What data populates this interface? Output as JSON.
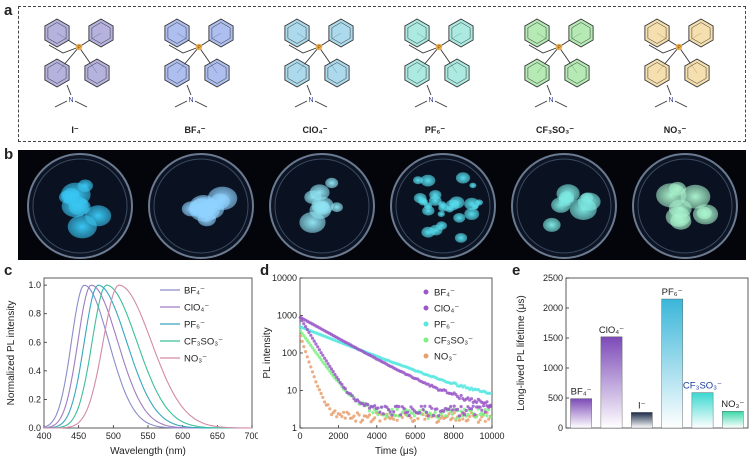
{
  "panels": {
    "a": "a",
    "b": "b",
    "c": "c",
    "d": "d",
    "e": "e"
  },
  "colors": {
    "I": "#a8a4d8",
    "BF4": "#9fb3ec",
    "ClO4": "#9ed2e8",
    "PF6": "#9ee6dc",
    "CF3SO3": "#a8e6a8",
    "NO3": "#f5d9a0",
    "phosphorus": "#f0b050",
    "bond": "#333333"
  },
  "molecules": [
    {
      "anion": "I⁻",
      "color": "#a8a4d8"
    },
    {
      "anion": "BF₄⁻",
      "color": "#9fb3ec"
    },
    {
      "anion": "ClO₄⁻",
      "color": "#9ed2e8"
    },
    {
      "anion": "PF₆⁻",
      "color": "#9ee6dc"
    },
    {
      "anion": "CF₃SO₃⁻",
      "color": "#a8e6a8"
    },
    {
      "anion": "NO₃⁻",
      "color": "#f5d9a0"
    }
  ],
  "molecule_labels": {
    "P": "P",
    "N": "N"
  },
  "photos": [
    {
      "name": "I",
      "glow": "#38c6f2"
    },
    {
      "name": "BF4",
      "glow": "#8fd2ff"
    },
    {
      "name": "ClO4",
      "glow": "#8fe3f2"
    },
    {
      "name": "PF6",
      "glow": "#56ddee"
    },
    {
      "name": "CF3SO3",
      "glow": "#7de9e2"
    },
    {
      "name": "NO3",
      "glow": "#a8f2cc"
    }
  ],
  "chart_data": [
    {
      "type": "line",
      "xlabel": "Wavelength (nm)",
      "ylabel": "Normalized PL intensity",
      "xlim": [
        400,
        700
      ],
      "ylim": [
        0,
        1.05
      ],
      "xticks": [
        400,
        450,
        500,
        550,
        600,
        650,
        700
      ],
      "yticks": [
        0.0,
        0.2,
        0.4,
        0.6,
        0.8,
        1.0
      ],
      "legend": "top-right",
      "series": [
        {
          "name": "BF₄⁻",
          "color": "#8a8cc8",
          "peak": 458,
          "wl": 26,
          "wr": 50
        },
        {
          "name": "ClO₄⁻",
          "color": "#a07cc0",
          "peak": 468,
          "wl": 27,
          "wr": 54
        },
        {
          "name": "PF₆⁻",
          "color": "#3aa6c0",
          "peak": 478,
          "wl": 28,
          "wr": 58
        },
        {
          "name": "CF₃SO₃⁻",
          "color": "#3cbf9a",
          "peak": 490,
          "wl": 29,
          "wr": 62
        },
        {
          "name": "NO₃⁻",
          "color": "#d48aa8",
          "peak": 508,
          "wl": 32,
          "wr": 66
        }
      ]
    },
    {
      "type": "scatter",
      "xlabel": "Time (μs)",
      "ylabel": "PL intensity",
      "yscale": "log",
      "xlim": [
        0,
        10000
      ],
      "ylim": [
        1,
        10000
      ],
      "xticks": [
        0,
        2000,
        4000,
        6000,
        8000,
        10000
      ],
      "yticks": [
        1,
        10,
        100,
        1000,
        10000
      ],
      "legend": "top-right",
      "series": [
        {
          "name": "BF₄⁻",
          "color": "#9a58c8",
          "amp": 900,
          "tau": 500,
          "base": 3
        },
        {
          "name": "ClO₄⁻",
          "color": "#9a58c8",
          "amp": 900,
          "tau": 1530,
          "base": 3
        },
        {
          "name": "PF₆⁻",
          "color": "#58e8e0",
          "amp": 500,
          "tau": 2160,
          "base": 3
        },
        {
          "name": "CF₃SO₃⁻",
          "color": "#7cf080",
          "amp": 400,
          "tau": 600,
          "base": 2.5
        },
        {
          "name": "NO₃⁻",
          "color": "#e8a070",
          "amp": 300,
          "tau": 280,
          "base": 2
        }
      ]
    },
    {
      "type": "bar",
      "ylabel": "Long-lived PL lifetime (μs)",
      "ylim": [
        0,
        2500
      ],
      "yticks": [
        0,
        500,
        1000,
        1500,
        2000,
        2500
      ],
      "categories": [
        "BF₄⁻",
        "ClO₄⁻",
        "I⁻",
        "PF₆⁻",
        "CF₃SO₃⁻",
        "NO₃⁻"
      ],
      "values": [
        490,
        1520,
        260,
        2150,
        590,
        280
      ],
      "colors": [
        "#7c4ab8",
        "#7c4ab8",
        "#1a2a48",
        "#3ab6d8",
        "#3ad8d0",
        "#3ad8a8"
      ],
      "label_colors": [
        "#222222",
        "#222222",
        "#222222",
        "#222222",
        "#1a3a9a",
        "#222222"
      ]
    }
  ]
}
